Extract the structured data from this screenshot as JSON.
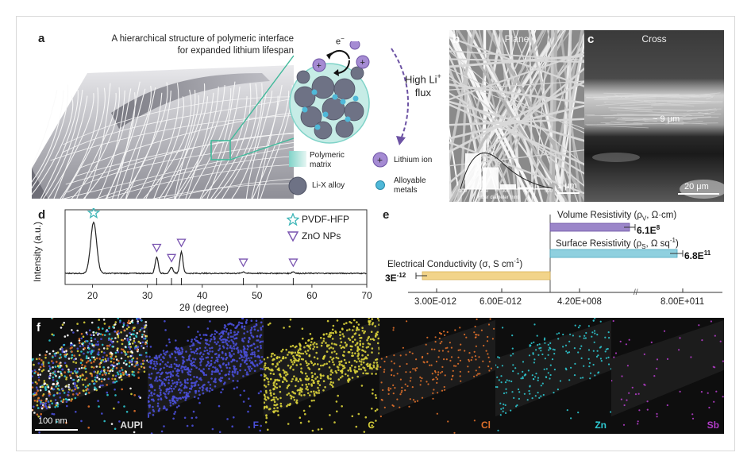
{
  "panel_a": {
    "label": "a",
    "title_line1": "A hierarchical structure of polymeric interface",
    "title_line2": "for expanded lithium lifespan",
    "electron": "e",
    "electron_sup": "−",
    "flux_line1": "High Li",
    "flux_sup": "+",
    "flux_line2": "flux",
    "legend": {
      "matrix_line1": "Polymeric",
      "matrix_line2": "matrix",
      "alloy": "Li-X alloy",
      "lithium": "Lithium ion",
      "metals_line1": "Alloyable",
      "metals_line2": "metals"
    },
    "colors": {
      "matrix": "#7fd3c8",
      "alloy": "#6e7285",
      "lithium": "#a58bd3",
      "metal": "#4fb8d8",
      "leader": "#3fb99a"
    }
  },
  "panel_b": {
    "label": "b",
    "title": "Plane",
    "scale": "1 μm",
    "hist_xlabel": "Fiber diameter (nm)",
    "hist_ticks": [
      "100",
      "200",
      "300",
      "400",
      "500"
    ],
    "hist_values": [
      0.9,
      0.55,
      0.12,
      0.05,
      0.02
    ]
  },
  "panel_c": {
    "label": "c",
    "title": "Cross",
    "thickness": "~ 9 μm",
    "scale": "20 μm"
  },
  "panel_d": {
    "label": "d",
    "legend_pvdf": "PVDF-HFP",
    "legend_zno": "ZnO NPs",
    "colors": {
      "pvdf": "#3fb6b8",
      "zno": "#7a55b0"
    }
  },
  "panel_e": {
    "label": "e",
    "volume_label": "Volume Resistivity (ρ",
    "volume_sub": "V",
    "volume_unit": ", Ω·cm)",
    "volume_value": "6.1E",
    "volume_exp": "8",
    "surface_label": "Surface Resistivity (ρ",
    "surface_sub": "S",
    "surface_unit": ", Ω sq",
    "surface_unit_sup": "-1",
    "surface_close": ")",
    "surface_value": "6.8E",
    "surface_exp": "11",
    "cond_label": "Electrical Conductivity (σ, S cm",
    "cond_sup": "-1",
    "cond_close": ")",
    "cond_value": "3E",
    "cond_exp": "-12",
    "ticks_left": [
      "3.00E-012",
      "6.00E-012"
    ],
    "ticks_right": [
      "4.20E+008",
      "8.00E+011"
    ],
    "break_mark": "//",
    "colors": {
      "volume": "#9b86c9",
      "surface": "#8fd0df",
      "conductivity": "#f2d48a"
    }
  },
  "panel_f": {
    "label": "f",
    "scale": "100 nm",
    "maps": [
      {
        "label": "AUPI",
        "color": "#ffffff"
      },
      {
        "label": "F",
        "color": "#4a4fd8"
      },
      {
        "label": "C",
        "color": "#d8d03a"
      },
      {
        "label": "Cl",
        "color": "#e0702a"
      },
      {
        "label": "Zn",
        "color": "#2ec8d0"
      },
      {
        "label": "Sb",
        "color": "#b23cc8"
      }
    ]
  },
  "chart_data": [
    {
      "type": "line",
      "xlabel": "2θ (degree)",
      "ylabel": "Intensity (a.u.)",
      "xlim": [
        15,
        70
      ],
      "xticks": [
        "20",
        "30",
        "40",
        "50",
        "60",
        "70"
      ],
      "peaks": [
        {
          "x": 20.2,
          "height": 1.0,
          "phase": "PVDF-HFP"
        },
        {
          "x": 31.7,
          "height": 0.32,
          "phase": "ZnO NPs"
        },
        {
          "x": 34.4,
          "height": 0.12,
          "phase": "ZnO NPs"
        },
        {
          "x": 36.2,
          "height": 0.42,
          "phase": "ZnO NPs"
        },
        {
          "x": 47.5,
          "height": 0.03,
          "phase": "ZnO NPs"
        },
        {
          "x": 56.6,
          "height": 0.03,
          "phase": "ZnO NPs"
        }
      ],
      "reference_lines": [
        31.7,
        34.4,
        36.2,
        47.5,
        56.6
      ]
    },
    {
      "type": "bar",
      "orientation": "horizontal",
      "series": [
        {
          "name": "Volume Resistivity",
          "value": "6.1E8"
        },
        {
          "name": "Surface Resistivity",
          "value": "6.8E11"
        },
        {
          "name": "Electrical Conductivity",
          "value": "3E-12"
        }
      ]
    }
  ]
}
